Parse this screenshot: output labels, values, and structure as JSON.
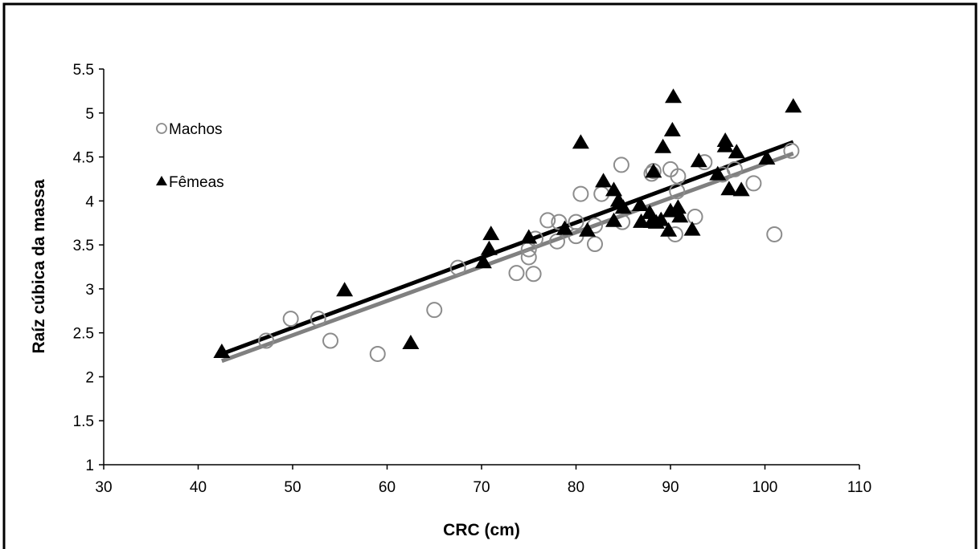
{
  "chart_data": {
    "type": "scatter",
    "xlabel": "CRC (cm)",
    "ylabel": "Raíz cúbica da massa",
    "xlim": [
      30,
      110
    ],
    "ylim": [
      1,
      5.5
    ],
    "xticks": [
      "30",
      "40",
      "50",
      "60",
      "70",
      "80",
      "90",
      "100",
      "110"
    ],
    "yticks": [
      "1",
      "1.5",
      "2",
      "2.5",
      "3",
      "3.5",
      "4",
      "4.5",
      "5",
      "5.5"
    ],
    "grid": false,
    "legend_position": "top-left",
    "series": [
      {
        "name": "Machos",
        "marker": "open-circle",
        "color": "#8c8c8c",
        "points": [
          [
            47.2,
            2.41
          ],
          [
            49.8,
            2.66
          ],
          [
            52.7,
            2.66
          ],
          [
            54.0,
            2.41
          ],
          [
            59.0,
            2.26
          ],
          [
            65.0,
            2.76
          ],
          [
            67.5,
            3.24
          ],
          [
            73.7,
            3.18
          ],
          [
            75.0,
            3.36
          ],
          [
            75.0,
            3.45
          ],
          [
            75.5,
            3.17
          ],
          [
            75.7,
            3.57
          ],
          [
            77.0,
            3.78
          ],
          [
            78.0,
            3.54
          ],
          [
            78.2,
            3.76
          ],
          [
            80.0,
            3.76
          ],
          [
            80.0,
            3.6
          ],
          [
            80.5,
            4.08
          ],
          [
            82.0,
            3.51
          ],
          [
            82.0,
            3.72
          ],
          [
            82.7,
            4.08
          ],
          [
            84.8,
            4.41
          ],
          [
            84.9,
            3.76
          ],
          [
            88.0,
            4.31
          ],
          [
            88.2,
            4.34
          ],
          [
            90.0,
            4.36
          ],
          [
            90.5,
            3.62
          ],
          [
            90.7,
            4.11
          ],
          [
            90.8,
            4.28
          ],
          [
            92.6,
            3.82
          ],
          [
            93.6,
            4.44
          ],
          [
            95.5,
            4.3
          ],
          [
            96.8,
            4.36
          ],
          [
            98.8,
            4.2
          ],
          [
            101.0,
            3.62
          ],
          [
            102.8,
            4.57
          ]
        ],
        "trend": {
          "x": [
            42.5,
            103.0
          ],
          "y": [
            2.18,
            4.54
          ],
          "color": "#808080"
        }
      },
      {
        "name": "Fêmeas",
        "marker": "filled-triangle",
        "color": "#000000",
        "points": [
          [
            42.5,
            2.28
          ],
          [
            55.5,
            2.98
          ],
          [
            62.5,
            2.38
          ],
          [
            70.2,
            3.3
          ],
          [
            70.8,
            3.45
          ],
          [
            71.0,
            3.62
          ],
          [
            75.0,
            3.58
          ],
          [
            78.8,
            3.68
          ],
          [
            80.5,
            4.66
          ],
          [
            81.2,
            3.66
          ],
          [
            82.9,
            4.22
          ],
          [
            84.0,
            4.12
          ],
          [
            84.0,
            3.77
          ],
          [
            84.5,
            4.0
          ],
          [
            85.0,
            3.92
          ],
          [
            86.8,
            3.95
          ],
          [
            86.9,
            3.76
          ],
          [
            87.8,
            3.86
          ],
          [
            88.0,
            3.76
          ],
          [
            88.2,
            4.33
          ],
          [
            88.5,
            3.75
          ],
          [
            89.0,
            3.78
          ],
          [
            89.2,
            4.61
          ],
          [
            89.8,
            3.66
          ],
          [
            90.0,
            3.88
          ],
          [
            90.2,
            4.8
          ],
          [
            90.3,
            5.18
          ],
          [
            90.8,
            3.92
          ],
          [
            91.0,
            3.82
          ],
          [
            92.3,
            3.67
          ],
          [
            93.0,
            4.45
          ],
          [
            95.0,
            4.3
          ],
          [
            95.8,
            4.68
          ],
          [
            95.8,
            4.62
          ],
          [
            96.2,
            4.13
          ],
          [
            97.0,
            4.55
          ],
          [
            97.5,
            4.12
          ],
          [
            100.2,
            4.48
          ],
          [
            103.0,
            5.07
          ]
        ],
        "trend": {
          "x": [
            42.5,
            103.0
          ],
          "y": [
            2.26,
            4.67
          ],
          "color": "#000000"
        }
      }
    ]
  }
}
